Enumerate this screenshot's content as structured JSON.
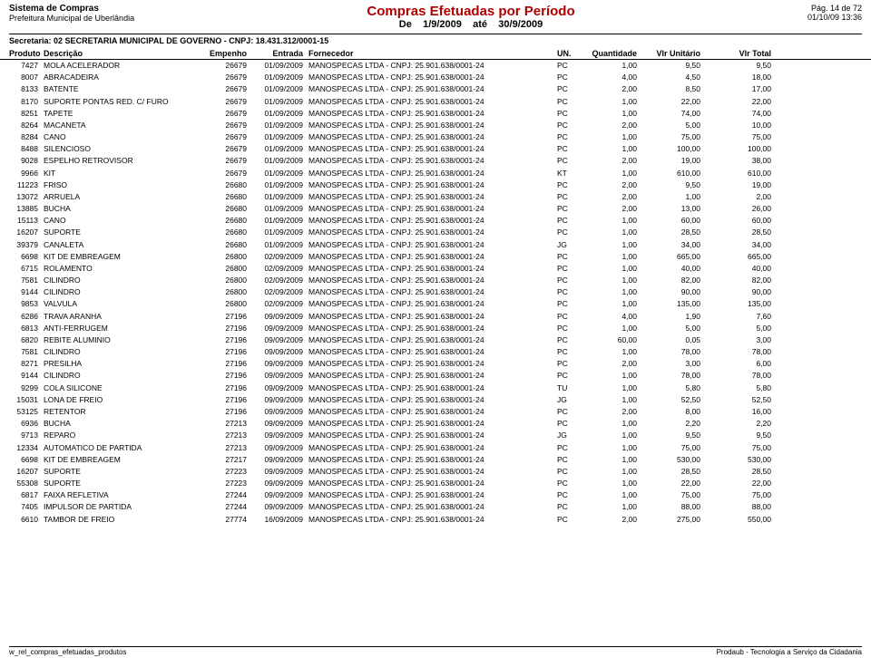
{
  "header": {
    "system": "Sistema de Compras",
    "org": "Prefeitura Municipal de Uberlândia",
    "title": "Compras Efetuadas por Período",
    "range_de": "De",
    "range_from": "1/9/2009",
    "range_ate": "até",
    "range_to": "30/9/2009",
    "page": "Pág. 14 de 72",
    "datetime": "01/10/09 13:36"
  },
  "secretaria": {
    "label": "Secretaria:",
    "value": "02  SECRETARIA MUNICIPAL DE GOVERNO   -   CNPJ: 18.431.312/0001-15"
  },
  "columns": {
    "produto": "Produto",
    "descricao": "Descrição",
    "empenho": "Empenho",
    "entrada": "Entrada",
    "fornecedor": "Fornecedor",
    "un": "UN.",
    "quantidade": "Quantidade",
    "vlr_unit": "Vlr Unitário",
    "vlr_total": "Vlr Total"
  },
  "fornecedor_text": "MANOSPECAS LTDA  -  CNPJ: 25.901.638/0001-24",
  "rows": [
    {
      "p": "7427",
      "d": "MOLA ACELERADOR",
      "e": "26679",
      "dt": "01/09/2009",
      "u": "PC",
      "q": "1,00",
      "vu": "9,50",
      "vt": "9,50"
    },
    {
      "p": "8007",
      "d": "ABRACADEIRA",
      "e": "26679",
      "dt": "01/09/2009",
      "u": "PC",
      "q": "4,00",
      "vu": "4,50",
      "vt": "18,00"
    },
    {
      "p": "8133",
      "d": "BATENTE",
      "e": "26679",
      "dt": "01/09/2009",
      "u": "PC",
      "q": "2,00",
      "vu": "8,50",
      "vt": "17,00"
    },
    {
      "p": "8170",
      "d": "SUPORTE PONTAS RED. C/ FURO",
      "e": "26679",
      "dt": "01/09/2009",
      "u": "PC",
      "q": "1,00",
      "vu": "22,00",
      "vt": "22,00"
    },
    {
      "p": "8251",
      "d": "TAPETE",
      "e": "26679",
      "dt": "01/09/2009",
      "u": "PC",
      "q": "1,00",
      "vu": "74,00",
      "vt": "74,00"
    },
    {
      "p": "8264",
      "d": "MACANETA",
      "e": "26679",
      "dt": "01/09/2009",
      "u": "PC",
      "q": "2,00",
      "vu": "5,00",
      "vt": "10,00"
    },
    {
      "p": "8284",
      "d": "CANO",
      "e": "26679",
      "dt": "01/09/2009",
      "u": "PC",
      "q": "1,00",
      "vu": "75,00",
      "vt": "75,00"
    },
    {
      "p": "8488",
      "d": "SILENCIOSO",
      "e": "26679",
      "dt": "01/09/2009",
      "u": "PC",
      "q": "1,00",
      "vu": "100,00",
      "vt": "100,00"
    },
    {
      "p": "9028",
      "d": "ESPELHO RETROVISOR",
      "e": "26679",
      "dt": "01/09/2009",
      "u": "PC",
      "q": "2,00",
      "vu": "19,00",
      "vt": "38,00"
    },
    {
      "p": "9966",
      "d": "KIT",
      "e": "26679",
      "dt": "01/09/2009",
      "u": "KT",
      "q": "1,00",
      "vu": "610,00",
      "vt": "610,00"
    },
    {
      "p": "11223",
      "d": "FRISO",
      "e": "26680",
      "dt": "01/09/2009",
      "u": "PC",
      "q": "2,00",
      "vu": "9,50",
      "vt": "19,00"
    },
    {
      "p": "13072",
      "d": "ARRUELA",
      "e": "26680",
      "dt": "01/09/2009",
      "u": "PC",
      "q": "2,00",
      "vu": "1,00",
      "vt": "2,00"
    },
    {
      "p": "13885",
      "d": "BUCHA",
      "e": "26680",
      "dt": "01/09/2009",
      "u": "PC",
      "q": "2,00",
      "vu": "13,00",
      "vt": "26,00"
    },
    {
      "p": "15113",
      "d": "CANO",
      "e": "26680",
      "dt": "01/09/2009",
      "u": "PC",
      "q": "1,00",
      "vu": "60,00",
      "vt": "60,00"
    },
    {
      "p": "16207",
      "d": "SUPORTE",
      "e": "26680",
      "dt": "01/09/2009",
      "u": "PC",
      "q": "1,00",
      "vu": "28,50",
      "vt": "28,50"
    },
    {
      "p": "39379",
      "d": "CANALETA",
      "e": "26680",
      "dt": "01/09/2009",
      "u": "JG",
      "q": "1,00",
      "vu": "34,00",
      "vt": "34,00"
    },
    {
      "p": "6698",
      "d": "KIT DE EMBREAGEM",
      "e": "26800",
      "dt": "02/09/2009",
      "u": "PC",
      "q": "1,00",
      "vu": "665,00",
      "vt": "665,00"
    },
    {
      "p": "6715",
      "d": "ROLAMENTO",
      "e": "26800",
      "dt": "02/09/2009",
      "u": "PC",
      "q": "1,00",
      "vu": "40,00",
      "vt": "40,00"
    },
    {
      "p": "7581",
      "d": "CILINDRO",
      "e": "26800",
      "dt": "02/09/2009",
      "u": "PC",
      "q": "1,00",
      "vu": "82,00",
      "vt": "82,00"
    },
    {
      "p": "9144",
      "d": "CILINDRO",
      "e": "26800",
      "dt": "02/09/2009",
      "u": "PC",
      "q": "1,00",
      "vu": "90,00",
      "vt": "90,00"
    },
    {
      "p": "9853",
      "d": "VALVULA",
      "e": "26800",
      "dt": "02/09/2009",
      "u": "PC",
      "q": "1,00",
      "vu": "135,00",
      "vt": "135,00"
    },
    {
      "p": "6286",
      "d": "TRAVA ARANHA",
      "e": "27196",
      "dt": "09/09/2009",
      "u": "PC",
      "q": "4,00",
      "vu": "1,90",
      "vt": "7,60"
    },
    {
      "p": "6813",
      "d": "ANTI-FERRUGEM",
      "e": "27196",
      "dt": "09/09/2009",
      "u": "PC",
      "q": "1,00",
      "vu": "5,00",
      "vt": "5,00"
    },
    {
      "p": "6820",
      "d": "REBITE ALUMINIO",
      "e": "27196",
      "dt": "09/09/2009",
      "u": "PC",
      "q": "60,00",
      "vu": "0,05",
      "vt": "3,00"
    },
    {
      "p": "7581",
      "d": "CILINDRO",
      "e": "27196",
      "dt": "09/09/2009",
      "u": "PC",
      "q": "1,00",
      "vu": "78,00",
      "vt": "78,00"
    },
    {
      "p": "8271",
      "d": "PRESILHA",
      "e": "27196",
      "dt": "09/09/2009",
      "u": "PC",
      "q": "2,00",
      "vu": "3,00",
      "vt": "6,00"
    },
    {
      "p": "9144",
      "d": "CILINDRO",
      "e": "27196",
      "dt": "09/09/2009",
      "u": "PC",
      "q": "1,00",
      "vu": "78,00",
      "vt": "78,00"
    },
    {
      "p": "9299",
      "d": "COLA SILICONE",
      "e": "27196",
      "dt": "09/09/2009",
      "u": "TU",
      "q": "1,00",
      "vu": "5,80",
      "vt": "5,80"
    },
    {
      "p": "15031",
      "d": "LONA DE FREIO",
      "e": "27196",
      "dt": "09/09/2009",
      "u": "JG",
      "q": "1,00",
      "vu": "52,50",
      "vt": "52,50"
    },
    {
      "p": "53125",
      "d": "RETENTOR",
      "e": "27196",
      "dt": "09/09/2009",
      "u": "PC",
      "q": "2,00",
      "vu": "8,00",
      "vt": "16,00"
    },
    {
      "p": "6936",
      "d": "BUCHA",
      "e": "27213",
      "dt": "09/09/2009",
      "u": "PC",
      "q": "1,00",
      "vu": "2,20",
      "vt": "2,20"
    },
    {
      "p": "9713",
      "d": "REPARO",
      "e": "27213",
      "dt": "09/09/2009",
      "u": "JG",
      "q": "1,00",
      "vu": "9,50",
      "vt": "9,50"
    },
    {
      "p": "12334",
      "d": "AUTOMATICO DE PARTIDA",
      "e": "27213",
      "dt": "09/09/2009",
      "u": "PC",
      "q": "1,00",
      "vu": "75,00",
      "vt": "75,00"
    },
    {
      "p": "6698",
      "d": "KIT DE EMBREAGEM",
      "e": "27217",
      "dt": "09/09/2009",
      "u": "PC",
      "q": "1,00",
      "vu": "530,00",
      "vt": "530,00"
    },
    {
      "p": "16207",
      "d": "SUPORTE",
      "e": "27223",
      "dt": "09/09/2009",
      "u": "PC",
      "q": "1,00",
      "vu": "28,50",
      "vt": "28,50"
    },
    {
      "p": "55308",
      "d": "SUPORTE",
      "e": "27223",
      "dt": "09/09/2009",
      "u": "PC",
      "q": "1,00",
      "vu": "22,00",
      "vt": "22,00"
    },
    {
      "p": "6817",
      "d": "FAIXA REFLETIVA",
      "e": "27244",
      "dt": "09/09/2009",
      "u": "PC",
      "q": "1,00",
      "vu": "75,00",
      "vt": "75,00"
    },
    {
      "p": "7405",
      "d": "IMPULSOR DE PARTIDA",
      "e": "27244",
      "dt": "09/09/2009",
      "u": "PC",
      "q": "1,00",
      "vu": "88,00",
      "vt": "88,00"
    },
    {
      "p": "6610",
      "d": "TAMBOR DE FREIO",
      "e": "27774",
      "dt": "16/09/2009",
      "u": "PC",
      "q": "2,00",
      "vu": "275,00",
      "vt": "550,00"
    }
  ],
  "footer": {
    "left": "w_rel_compras_efetuadas_produtos",
    "right": "Prodaub - Tecnologia a Serviço da Cidadania"
  }
}
